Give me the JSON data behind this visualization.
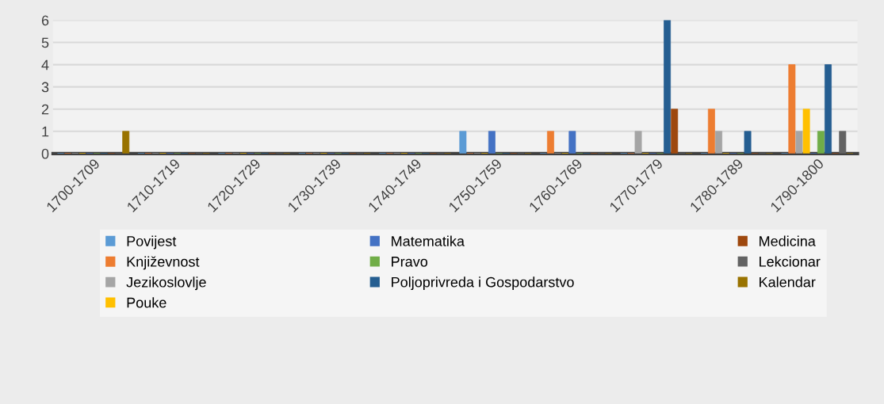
{
  "chart_data": {
    "type": "bar",
    "categories": [
      "1700-1709",
      "1710-1719",
      "1720-1729",
      "1730-1739",
      "1740-1749",
      "1750-1759",
      "1760-1769",
      "1770-1779",
      "1780-1789",
      "1790-1800"
    ],
    "series": [
      {
        "name": "Povijest",
        "color": "#5b9bd5",
        "values": [
          0,
          0,
          0,
          0,
          0,
          1,
          0,
          0,
          0,
          0
        ]
      },
      {
        "name": "Književnost",
        "color": "#ed7d31",
        "values": [
          0,
          0,
          0,
          0,
          0,
          0,
          1,
          0,
          2,
          4
        ]
      },
      {
        "name": "Jezikoslovlje",
        "color": "#a5a5a5",
        "values": [
          0,
          0,
          0,
          0,
          0,
          0,
          0,
          1,
          1,
          1
        ]
      },
      {
        "name": "Pouke",
        "color": "#ffc000",
        "values": [
          0,
          0,
          0,
          0,
          0,
          0,
          0,
          0,
          0,
          2
        ]
      },
      {
        "name": "Matematika",
        "color": "#4472c4",
        "values": [
          0,
          0,
          0,
          0,
          0,
          1,
          1,
          0,
          0,
          0
        ]
      },
      {
        "name": "Pravo",
        "color": "#70ad47",
        "values": [
          0,
          0,
          0,
          0,
          0,
          0,
          0,
          0,
          0,
          1
        ]
      },
      {
        "name": "Poljoprivreda i Gospodarstvo",
        "color": "#255e91",
        "values": [
          0,
          0,
          0,
          0,
          0,
          0,
          0,
          6,
          1,
          4
        ]
      },
      {
        "name": "Medicina",
        "color": "#9e480e",
        "values": [
          0,
          0,
          0,
          0,
          0,
          0,
          0,
          2,
          0,
          0
        ]
      },
      {
        "name": "Lekcionar",
        "color": "#636363",
        "values": [
          0,
          0,
          0,
          0,
          0,
          0,
          0,
          0,
          0,
          1
        ]
      },
      {
        "name": "Kalendar",
        "color": "#997300",
        "values": [
          1,
          0,
          0,
          0,
          0,
          0,
          0,
          0,
          0,
          0
        ]
      }
    ],
    "ylim": [
      0,
      6
    ],
    "yticks": [
      0,
      1,
      2,
      3,
      4,
      5,
      6
    ],
    "grid": "y",
    "legend": "bottom"
  }
}
